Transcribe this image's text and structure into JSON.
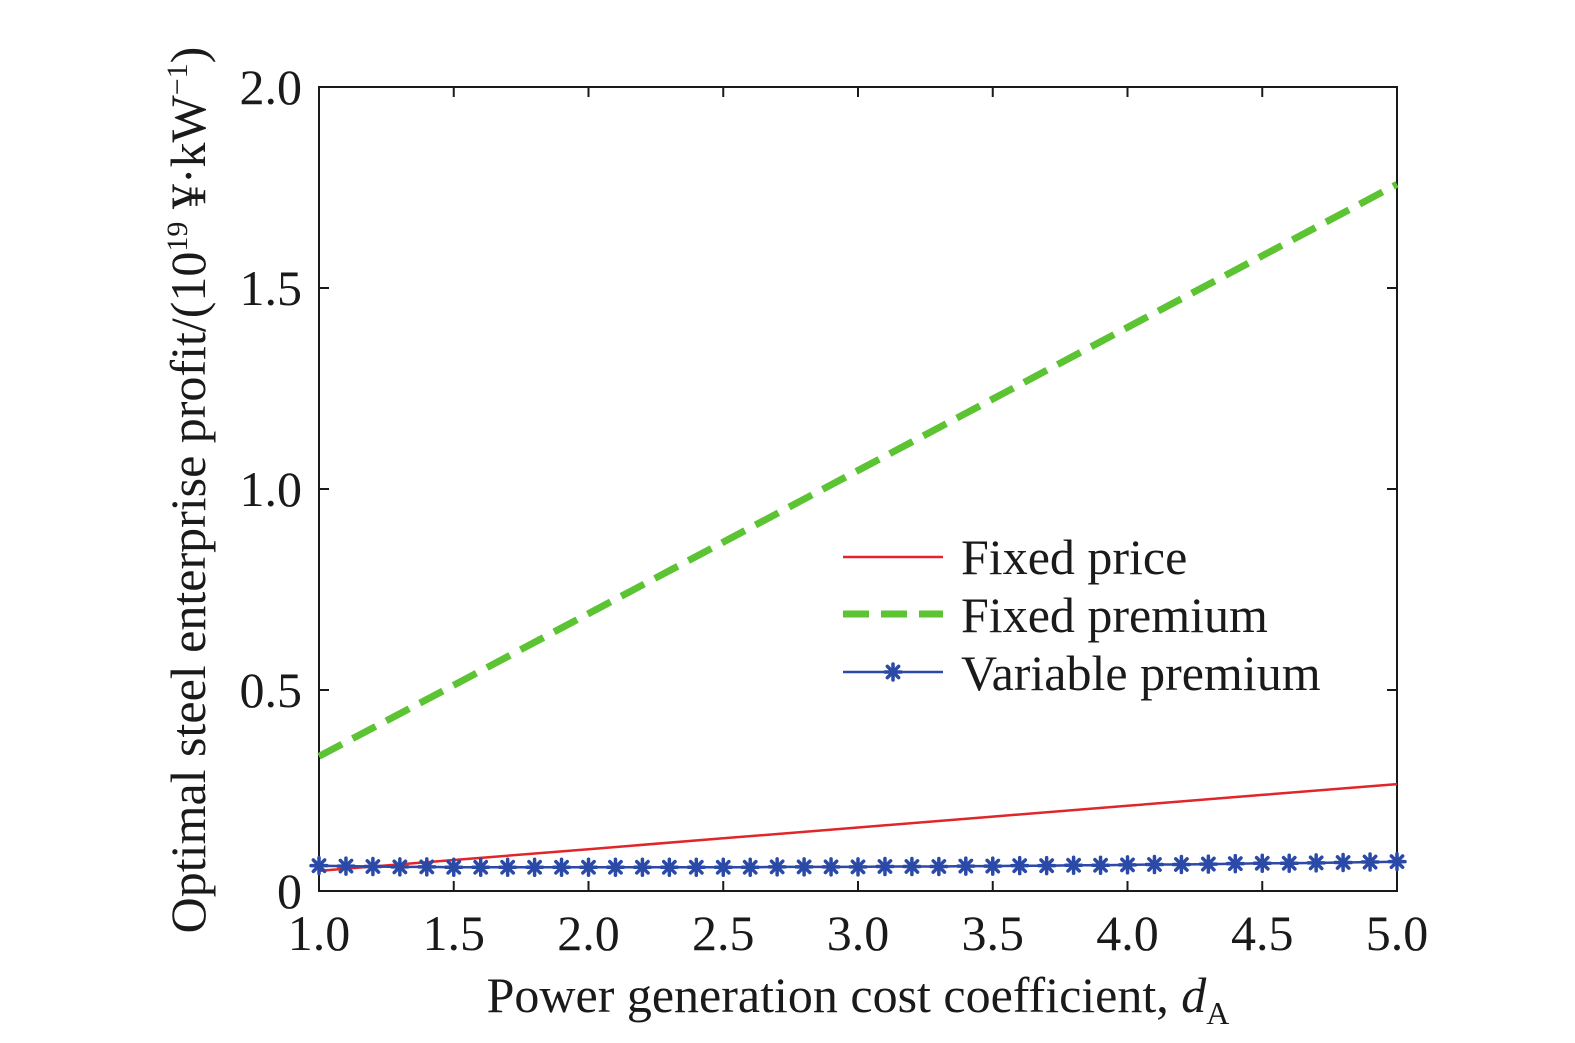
{
  "chart_data": {
    "type": "line",
    "title": "",
    "xlabel": "Power generation cost coefficient, ",
    "xlabel_var": "d",
    "xlabel_sub": "A",
    "ylabel_pre": "Optimal steel enterprise profit/(10",
    "ylabel_sup1": "19",
    "ylabel_mid": " ¥·kW",
    "ylabel_sup2": "−1",
    "ylabel_post": ")",
    "xlim": [
      1.0,
      5.0
    ],
    "ylim": [
      0,
      2.0
    ],
    "x_ticks": [
      "1.0",
      "1.5",
      "2.0",
      "2.5",
      "3.0",
      "3.5",
      "4.0",
      "4.5",
      "5.0"
    ],
    "y_ticks": [
      "0",
      "0.5",
      "1.0",
      "1.5",
      "2.0"
    ],
    "legend_position": "center-right",
    "grid": false,
    "series": [
      {
        "name": "Fixed price",
        "color": "#e0262a",
        "style": "solid",
        "x": [
          1.0,
          1.5,
          2.0,
          2.5,
          3.0,
          3.5,
          4.0,
          4.5,
          5.0
        ],
        "y": [
          0.05,
          0.077,
          0.104,
          0.131,
          0.158,
          0.185,
          0.212,
          0.239,
          0.266
        ]
      },
      {
        "name": "Fixed premium",
        "color": "#5cc332",
        "style": "dashed",
        "x": [
          1.0,
          1.5,
          2.0,
          2.5,
          3.0,
          3.5,
          4.0,
          4.5,
          5.0
        ],
        "y": [
          0.335,
          0.512,
          0.69,
          0.868,
          1.046,
          1.224,
          1.402,
          1.58,
          1.758
        ]
      },
      {
        "name": "Variable premium",
        "color": "#2b4aa8",
        "style": "solid-star",
        "x": [
          1.0,
          1.1,
          1.2,
          1.3,
          1.4,
          1.5,
          1.6,
          1.7,
          1.8,
          1.9,
          2.0,
          2.1,
          2.2,
          2.3,
          2.4,
          2.5,
          2.6,
          2.7,
          2.8,
          2.9,
          3.0,
          3.1,
          3.2,
          3.3,
          3.4,
          3.5,
          3.6,
          3.7,
          3.8,
          3.9,
          4.0,
          4.1,
          4.2,
          4.3,
          4.4,
          4.5,
          4.6,
          4.7,
          4.8,
          4.9,
          5.0
        ],
        "y": [
          0.063,
          0.062,
          0.061,
          0.06,
          0.06,
          0.059,
          0.059,
          0.059,
          0.059,
          0.059,
          0.059,
          0.059,
          0.059,
          0.059,
          0.059,
          0.059,
          0.059,
          0.06,
          0.06,
          0.06,
          0.06,
          0.061,
          0.061,
          0.061,
          0.062,
          0.062,
          0.063,
          0.063,
          0.064,
          0.064,
          0.065,
          0.066,
          0.066,
          0.067,
          0.068,
          0.069,
          0.069,
          0.07,
          0.071,
          0.072,
          0.073
        ]
      }
    ]
  }
}
